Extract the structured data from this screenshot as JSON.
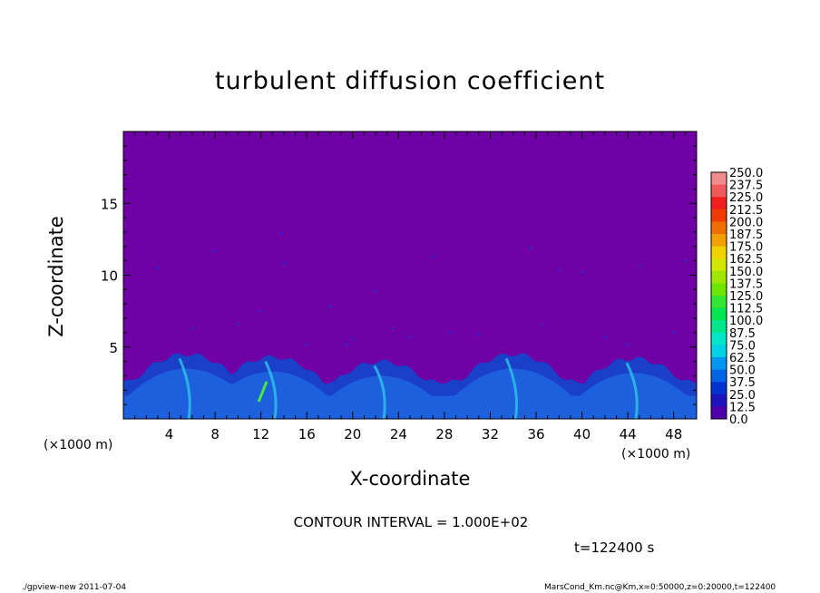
{
  "chart_data": {
    "type": "heatmap",
    "title": "turbulent diffusion coefficient",
    "xlabel": "X-coordinate",
    "ylabel": "Z-coordinate",
    "x_unit": "(×1000 m)",
    "xlim": [
      0,
      50
    ],
    "ylim": [
      0,
      20
    ],
    "x_ticks": [
      4,
      8,
      12,
      16,
      20,
      24,
      28,
      32,
      36,
      40,
      44,
      48
    ],
    "y_ticks": [
      5,
      10,
      15
    ],
    "colorbar": {
      "levels": [
        "250.0",
        "237.5",
        "225.0",
        "212.5",
        "200.0",
        "187.5",
        "175.0",
        "162.5",
        "150.0",
        "137.5",
        "125.0",
        "112.5",
        "100.0",
        "87.5",
        "75.0",
        "62.5",
        "50.0",
        "37.5",
        "25.0",
        "12.5",
        "0.0"
      ],
      "colors": [
        "#f08c8c",
        "#f05a5a",
        "#f01e1e",
        "#f03c00",
        "#f06e00",
        "#f0a000",
        "#f0d200",
        "#d2e600",
        "#a0e600",
        "#6ee600",
        "#32e632",
        "#00e650",
        "#00e68c",
        "#00e6c8",
        "#00d2e6",
        "#0096f0",
        "#0064e6",
        "#0032d2",
        "#1e14be",
        "#5000aa"
      ],
      "background_color": "#6e00a6"
    },
    "contour_interval_text": "CONTOUR INTERVAL = 1.000E+02",
    "time_text": "t=122400 s",
    "footer_left": "./gpview-new  2011-07-04",
    "footer_right": "MarsCond_Km.nc@Km,x=0:50000,z=0:20000,t=122400"
  }
}
